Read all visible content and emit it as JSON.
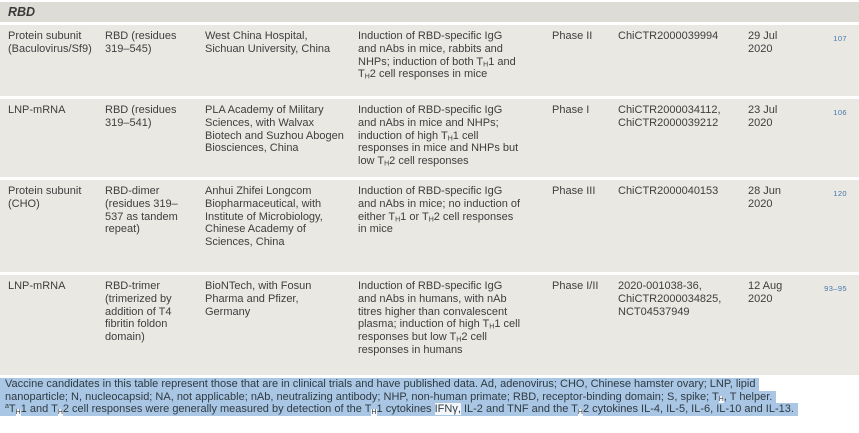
{
  "section_header": "RBD",
  "colors": {
    "row_background": "#eae8e3",
    "section_bar_background": "#dedcd6",
    "selection_highlight": "#a9c7e4",
    "reference_link_blue": "#4577ad",
    "body_text": "#3e3e3e"
  },
  "rows": [
    {
      "platform": "Protein subunit (Baculovirus/Sf9)",
      "antigen": "RBD (residues 319–545)",
      "developer": "West China Hospital, Sichuan University, China",
      "results": "Induction of RBD-specific IgG and nAbs in mice, rabbits and NHPs; induction of both T[sub]H[/sub]1 and T[sub]H[/sub]2 cell responses in mice",
      "phase": "Phase II",
      "trial_numbers": "ChiCTR2000039994",
      "date": "29 Jul 2020",
      "refs": "107"
    },
    {
      "platform": "LNP-mRNA",
      "antigen": "RBD (residues 319–541)",
      "developer": "PLA Academy of Military Sciences, with Walvax Biotech and Suzhou Abogen Biosciences, China",
      "results": "Induction of RBD-specific IgG and nAbs in mice and NHPs; induction of high T[sub]H[/sub]1 cell responses in mice and NHPs but low T[sub]H[/sub]2 cell responses",
      "phase": "Phase I",
      "trial_numbers": "ChiCTR2000034112, ChiCTR2000039212",
      "date": "23 Jul 2020",
      "refs": "106"
    },
    {
      "platform": "Protein subunit (CHO)",
      "antigen": "RBD-dimer (residues 319–537 as tandem repeat)",
      "developer": "Anhui Zhifei Longcom Biopharmaceutical, with Institute of Microbiology, Chinese Academy of Sciences, China",
      "results": "Induction of RBD-specific IgG and nAbs in mice; no induction of either T[sub]H[/sub]1 or T[sub]H[/sub]2 cell responses in mice",
      "phase": "Phase III",
      "trial_numbers": "ChiCTR2000040153",
      "date": "28 Jun 2020",
      "refs": "120"
    },
    {
      "platform": "LNP-mRNA",
      "antigen": "RBD-trimer (trimerized by addition of T4 fibritin foldon domain)",
      "developer": "BioNTech, with Fosun Pharma and Pfizer, Germany",
      "results": "Induction of RBD-specific IgG and nAbs in humans, with nAb titres higher than convalescent plasma; induction of high T[sub]H[/sub]1 cell responses but low T[sub]H[/sub]2 cell responses in humans",
      "phase": "Phase I/II",
      "trial_numbers": "2020-001038-36, ChiCTR2000034825, NCT04537949",
      "date": "12 Aug 2020",
      "refs": "93–95"
    }
  ],
  "footnote": {
    "lines": [
      "Vaccine candidates in this table represent those that are in clinical trials and have published data. Ad, adenovirus; CHO, Chinese hamster ovary; LNP, lipid",
      "nanoparticle; N, nucleocapsid; NA, not applicable; nAb, neutralizing antibody; NHP, non-human primate; RBD, receptor-binding domain; S, spike; T[sub-wb]H[/sub-wb], T helper.",
      "[sup]a[/sup]T[sub-wb]H[/sub-wb]1 and T[sub-wb]H[/sub-wb]2 cell responses were generally measured by detection of the T[sub-wb]H[/sub-wb]1 cytokines [wb]IFNγ,[/wb] IL-2 and TNF and the T[sub-wb]H[/sub-wb]2 cytokines IL-4, IL-5, IL-6, IL-10 and IL-13."
    ]
  }
}
